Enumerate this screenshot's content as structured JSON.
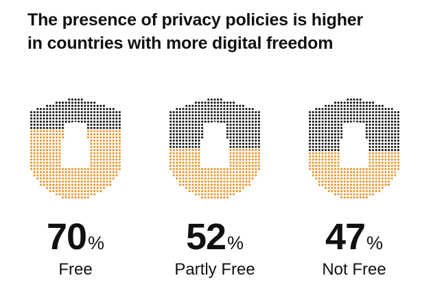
{
  "title_line1": "The presence of privacy policies is higher",
  "title_line2": "in countries with more digital freedom",
  "colors": {
    "filled": "#e8952e",
    "empty": "#111111",
    "lock": "#ffffff"
  },
  "icon": "lock-shield-icon",
  "chart_data": {
    "type": "bar",
    "title": "The presence of privacy policies is higher in countries with more digital freedom",
    "categories": [
      "Free",
      "Partly Free",
      "Not Free"
    ],
    "values": [
      70,
      52,
      47
    ],
    "unit": "%",
    "ylim": [
      0,
      100
    ]
  },
  "labels": [
    {
      "num": "70",
      "unit": "%",
      "category": "Free"
    },
    {
      "num": "52",
      "unit": "%",
      "category": "Partly Free"
    },
    {
      "num": "47",
      "unit": "%",
      "category": "Not Free"
    }
  ]
}
